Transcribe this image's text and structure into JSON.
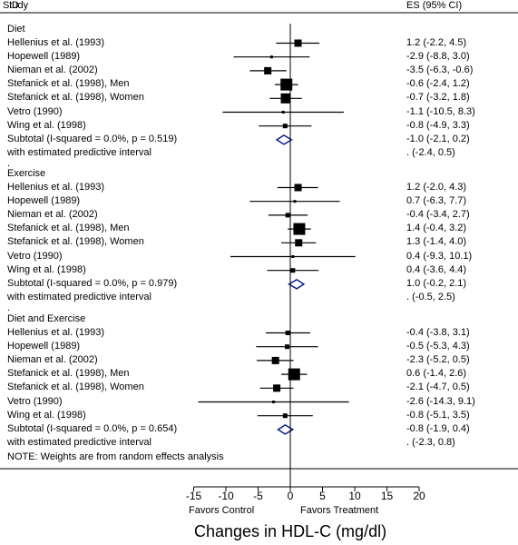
{
  "header": {
    "study": "Study",
    "id": "ID",
    "es": "ES (95% CI)"
  },
  "chart_data": {
    "type": "forest",
    "xlabel": "Changes in HDL-C (mg/dl)",
    "xticks": [
      -15,
      -10,
      -5,
      0,
      5,
      10,
      15,
      20
    ],
    "xlim": [
      -15,
      20
    ],
    "favors_left": "Favors Control",
    "favors_right": "Favors Treatment",
    "note": "NOTE: Weights are from random effects analysis",
    "groups": [
      {
        "name": "Diet",
        "studies": [
          {
            "label": "Hellenius et al. (1993)",
            "es": 1.2,
            "lo": -2.2,
            "hi": 4.5,
            "ci_text": "1.2 (-2.2, 4.5)",
            "weight": 3
          },
          {
            "label": "Hopewell (1989)",
            "es": -2.9,
            "lo": -8.8,
            "hi": 3.0,
            "ci_text": "-2.9 (-8.8, 3.0)",
            "weight": 1
          },
          {
            "label": "Nieman et al. (2002)",
            "es": -3.5,
            "lo": -6.3,
            "hi": -0.6,
            "ci_text": "-3.5 (-6.3, -0.6)",
            "weight": 3
          },
          {
            "label": "Stefanick et al. (1998), Men",
            "es": -0.6,
            "lo": -2.4,
            "hi": 1.2,
            "ci_text": "-0.6 (-2.4, 1.2)",
            "weight": 5
          },
          {
            "label": "Stefanick et al. (1998), Women",
            "es": -0.7,
            "lo": -3.2,
            "hi": 1.8,
            "ci_text": "-0.7 (-3.2, 1.8)",
            "weight": 4
          },
          {
            "label": "Vetro (1990)",
            "es": -1.1,
            "lo": -10.5,
            "hi": 8.3,
            "ci_text": "-1.1 (-10.5, 8.3)",
            "weight": 1
          },
          {
            "label": "Wing et al. (1998)",
            "es": -0.8,
            "lo": -4.9,
            "hi": 3.3,
            "ci_text": "-0.8 (-4.9, 3.3)",
            "weight": 2
          }
        ],
        "subtotal": {
          "label": "Subtotal  (I-squared = 0.0%, p = 0.519)",
          "es": -1.0,
          "lo": -2.1,
          "hi": 0.2,
          "ci_text": "-1.0 (-2.1, 0.2)"
        },
        "predictive": {
          "label": "with estimated predictive interval",
          "lo": -2.4,
          "hi": 0.5,
          "ci_text": ".        (-2.4, 0.5)"
        }
      },
      {
        "name": "Exercise",
        "studies": [
          {
            "label": "Hellenius et al. (1993)",
            "es": 1.2,
            "lo": -2.0,
            "hi": 4.3,
            "ci_text": "1.2 (-2.0, 4.3)",
            "weight": 3
          },
          {
            "label": "Hopewell (1989)",
            "es": 0.7,
            "lo": -6.3,
            "hi": 7.7,
            "ci_text": "0.7 (-6.3, 7.7)",
            "weight": 1
          },
          {
            "label": "Nieman et al. (2002)",
            "es": -0.4,
            "lo": -3.4,
            "hi": 2.7,
            "ci_text": "-0.4 (-3.4, 2.7)",
            "weight": 2
          },
          {
            "label": "Stefanick et al. (1998), Men",
            "es": 1.4,
            "lo": -0.4,
            "hi": 3.2,
            "ci_text": "1.4 (-0.4, 3.2)",
            "weight": 5
          },
          {
            "label": "Stefanick et al. (1998), Women",
            "es": 1.3,
            "lo": -1.4,
            "hi": 4.0,
            "ci_text": "1.3 (-1.4, 4.0)",
            "weight": 3
          },
          {
            "label": "Vetro (1990)",
            "es": 0.4,
            "lo": -9.3,
            "hi": 10.1,
            "ci_text": "0.4 (-9.3, 10.1)",
            "weight": 1
          },
          {
            "label": "Wing et al. (1998)",
            "es": 0.4,
            "lo": -3.6,
            "hi": 4.4,
            "ci_text": "0.4 (-3.6, 4.4)",
            "weight": 2
          }
        ],
        "subtotal": {
          "label": "Subtotal  (I-squared = 0.0%, p = 0.979)",
          "es": 1.0,
          "lo": -0.2,
          "hi": 2.1,
          "ci_text": "1.0 (-0.2, 2.1)"
        },
        "predictive": {
          "label": "with estimated predictive interval",
          "lo": -0.5,
          "hi": 2.5,
          "ci_text": ".        (-0.5, 2.5)"
        }
      },
      {
        "name": "Diet and Exercise",
        "studies": [
          {
            "label": "Hellenius et al. (1993)",
            "es": -0.4,
            "lo": -3.8,
            "hi": 3.1,
            "ci_text": "-0.4 (-3.8, 3.1)",
            "weight": 2
          },
          {
            "label": "Hopewell (1989)",
            "es": -0.5,
            "lo": -5.3,
            "hi": 4.3,
            "ci_text": "-0.5 (-5.3, 4.3)",
            "weight": 2
          },
          {
            "label": "Nieman et al. (2002)",
            "es": -2.3,
            "lo": -5.2,
            "hi": 0.5,
            "ci_text": "-2.3 (-5.2, 0.5)",
            "weight": 3
          },
          {
            "label": "Stefanick et al. (1998), Men",
            "es": 0.6,
            "lo": -1.4,
            "hi": 2.6,
            "ci_text": "0.6 (-1.4, 2.6)",
            "weight": 5
          },
          {
            "label": "Stefanick et al. (1998), Women",
            "es": -2.1,
            "lo": -4.7,
            "hi": 0.5,
            "ci_text": "-2.1 (-4.7, 0.5)",
            "weight": 3
          },
          {
            "label": "Vetro (1990)",
            "es": -2.6,
            "lo": -14.3,
            "hi": 9.1,
            "ci_text": "-2.6 (-14.3, 9.1)",
            "weight": 1
          },
          {
            "label": "Wing et al. (1998)",
            "es": -0.8,
            "lo": -5.1,
            "hi": 3.5,
            "ci_text": "-0.8 (-5.1, 3.5)",
            "weight": 2
          }
        ],
        "subtotal": {
          "label": "Subtotal  (I-squared = 0.0%, p = 0.654)",
          "es": -0.8,
          "lo": -1.9,
          "hi": 0.4,
          "ci_text": "-0.8 (-1.9, 0.4)"
        },
        "predictive": {
          "label": "with estimated predictive interval",
          "lo": -2.3,
          "hi": 0.8,
          "ci_text": ".        (-2.3, 0.8)"
        }
      }
    ]
  }
}
